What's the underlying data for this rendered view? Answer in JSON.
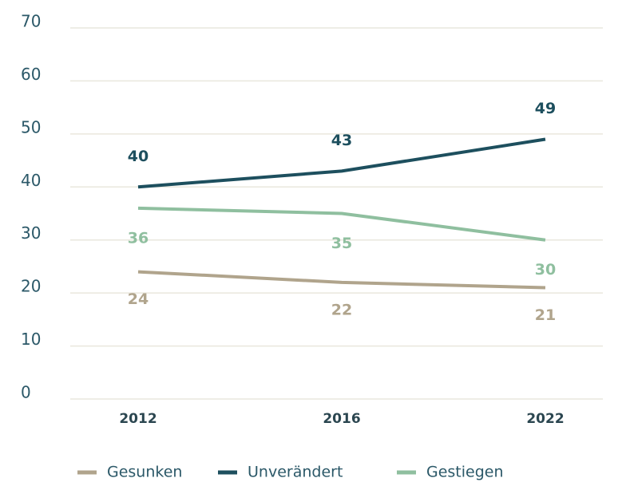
{
  "chart_data": {
    "type": "line",
    "categories": [
      "2012",
      "2016",
      "2022"
    ],
    "series": [
      {
        "name": "Gesunken",
        "color": "#b0a48c",
        "values": [
          24,
          22,
          21
        ]
      },
      {
        "name": "Unverändert",
        "color": "#1d4f5e",
        "values": [
          40,
          43,
          49
        ]
      },
      {
        "name": "Gestiegen",
        "color": "#8fbf9f",
        "values": [
          36,
          35,
          30
        ]
      }
    ],
    "ylim": [
      0,
      70
    ],
    "yticks": [
      0,
      10,
      20,
      30,
      40,
      50,
      60,
      70
    ],
    "grid": true
  }
}
